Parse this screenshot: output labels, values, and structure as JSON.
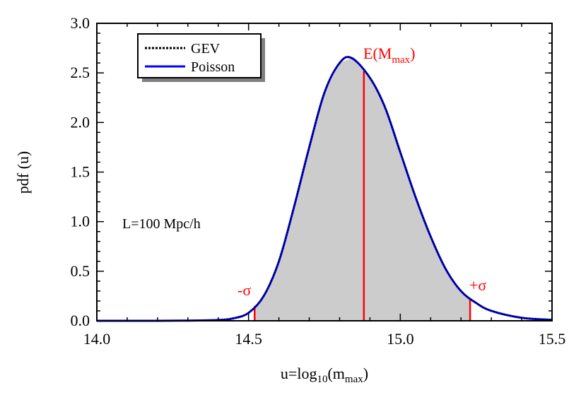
{
  "chart_data": {
    "type": "area",
    "ylabel": "pdf (u)",
    "xlabel": {
      "prefix": "u=log",
      "sub": "10",
      "mid": "(m",
      "sub2": "max",
      "suffix": ")"
    },
    "xlim": [
      14.0,
      15.5
    ],
    "ylim": [
      0.0,
      3.0
    ],
    "x_ticks": [
      "14.0",
      "14.5",
      "15.0",
      "15.5"
    ],
    "y_ticks": [
      "0.0",
      "0.5",
      "1.0",
      "1.5",
      "2.0",
      "2.5",
      "3.0"
    ],
    "annotation": "L=100 Mpc/h",
    "legend": {
      "placement": "top-left",
      "entries": [
        {
          "label": "GEV",
          "style": "dotted",
          "color": "#000000"
        },
        {
          "label": "Poisson",
          "style": "solid",
          "color": "#0000ff"
        }
      ]
    },
    "series": [
      {
        "name": "GEV",
        "x": [
          14.0,
          14.1,
          14.2,
          14.3,
          14.4,
          14.45,
          14.5,
          14.55,
          14.6,
          14.65,
          14.7,
          14.75,
          14.8,
          14.84,
          14.9,
          14.95,
          15.0,
          15.05,
          15.1,
          15.15,
          15.2,
          15.25,
          15.3,
          15.4,
          15.5
        ],
        "y": [
          0.0,
          0.0,
          0.0,
          0.002,
          0.008,
          0.025,
          0.08,
          0.25,
          0.6,
          1.15,
          1.75,
          2.3,
          2.6,
          2.65,
          2.45,
          2.15,
          1.7,
          1.25,
          0.85,
          0.52,
          0.3,
          0.18,
          0.1,
          0.03,
          0.01
        ]
      },
      {
        "name": "Poisson",
        "x": [
          14.0,
          14.1,
          14.2,
          14.3,
          14.4,
          14.45,
          14.5,
          14.55,
          14.6,
          14.65,
          14.7,
          14.75,
          14.8,
          14.84,
          14.9,
          14.95,
          15.0,
          15.05,
          15.1,
          15.15,
          15.2,
          15.25,
          15.3,
          15.4,
          15.5
        ],
        "y": [
          0.0,
          0.0,
          0.0,
          0.002,
          0.008,
          0.025,
          0.08,
          0.25,
          0.6,
          1.15,
          1.75,
          2.3,
          2.6,
          2.65,
          2.45,
          2.15,
          1.7,
          1.25,
          0.85,
          0.52,
          0.3,
          0.18,
          0.1,
          0.03,
          0.01
        ]
      }
    ],
    "shaded_interval": [
      14.52,
      15.23
    ],
    "markers": [
      {
        "x": 14.88,
        "label_main": "E(M",
        "label_sub": "max",
        "label_end": ")",
        "color": "#ff0000"
      },
      {
        "x": 14.52,
        "label": "-σ",
        "color": "#ff0000"
      },
      {
        "x": 15.23,
        "label": "+σ",
        "color": "#ff0000"
      }
    ],
    "colors": {
      "fill": "#cccccc",
      "marker": "#ff0000",
      "poisson": "#0000ff",
      "gev": "#000000"
    }
  }
}
